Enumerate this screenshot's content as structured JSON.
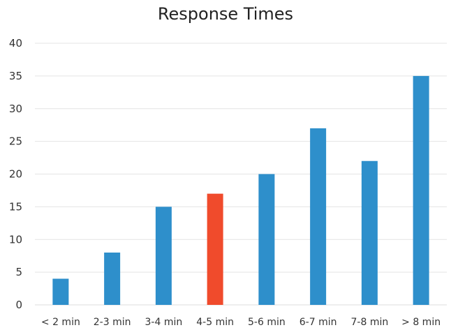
{
  "chart_data": {
    "type": "bar",
    "title": "Response Times",
    "xlabel": "",
    "ylabel": "",
    "categories": [
      "< 2 min",
      "2-3 min",
      "3-4 min",
      "4-5 min",
      "5-6 min",
      "6-7 min",
      "7-8 min",
      "> 8 min"
    ],
    "values": [
      4,
      8,
      15,
      17,
      20,
      27,
      22,
      35
    ],
    "ylim": [
      0,
      40
    ],
    "yticks": [
      0,
      5,
      10,
      15,
      20,
      25,
      30,
      35,
      40
    ],
    "grid": true,
    "legend": "none",
    "colors": {
      "default": "#2E8FCB",
      "highlight": "#F04B2C",
      "highlight_category": "4-5 min",
      "gridline": "#E4E4E4"
    }
  }
}
